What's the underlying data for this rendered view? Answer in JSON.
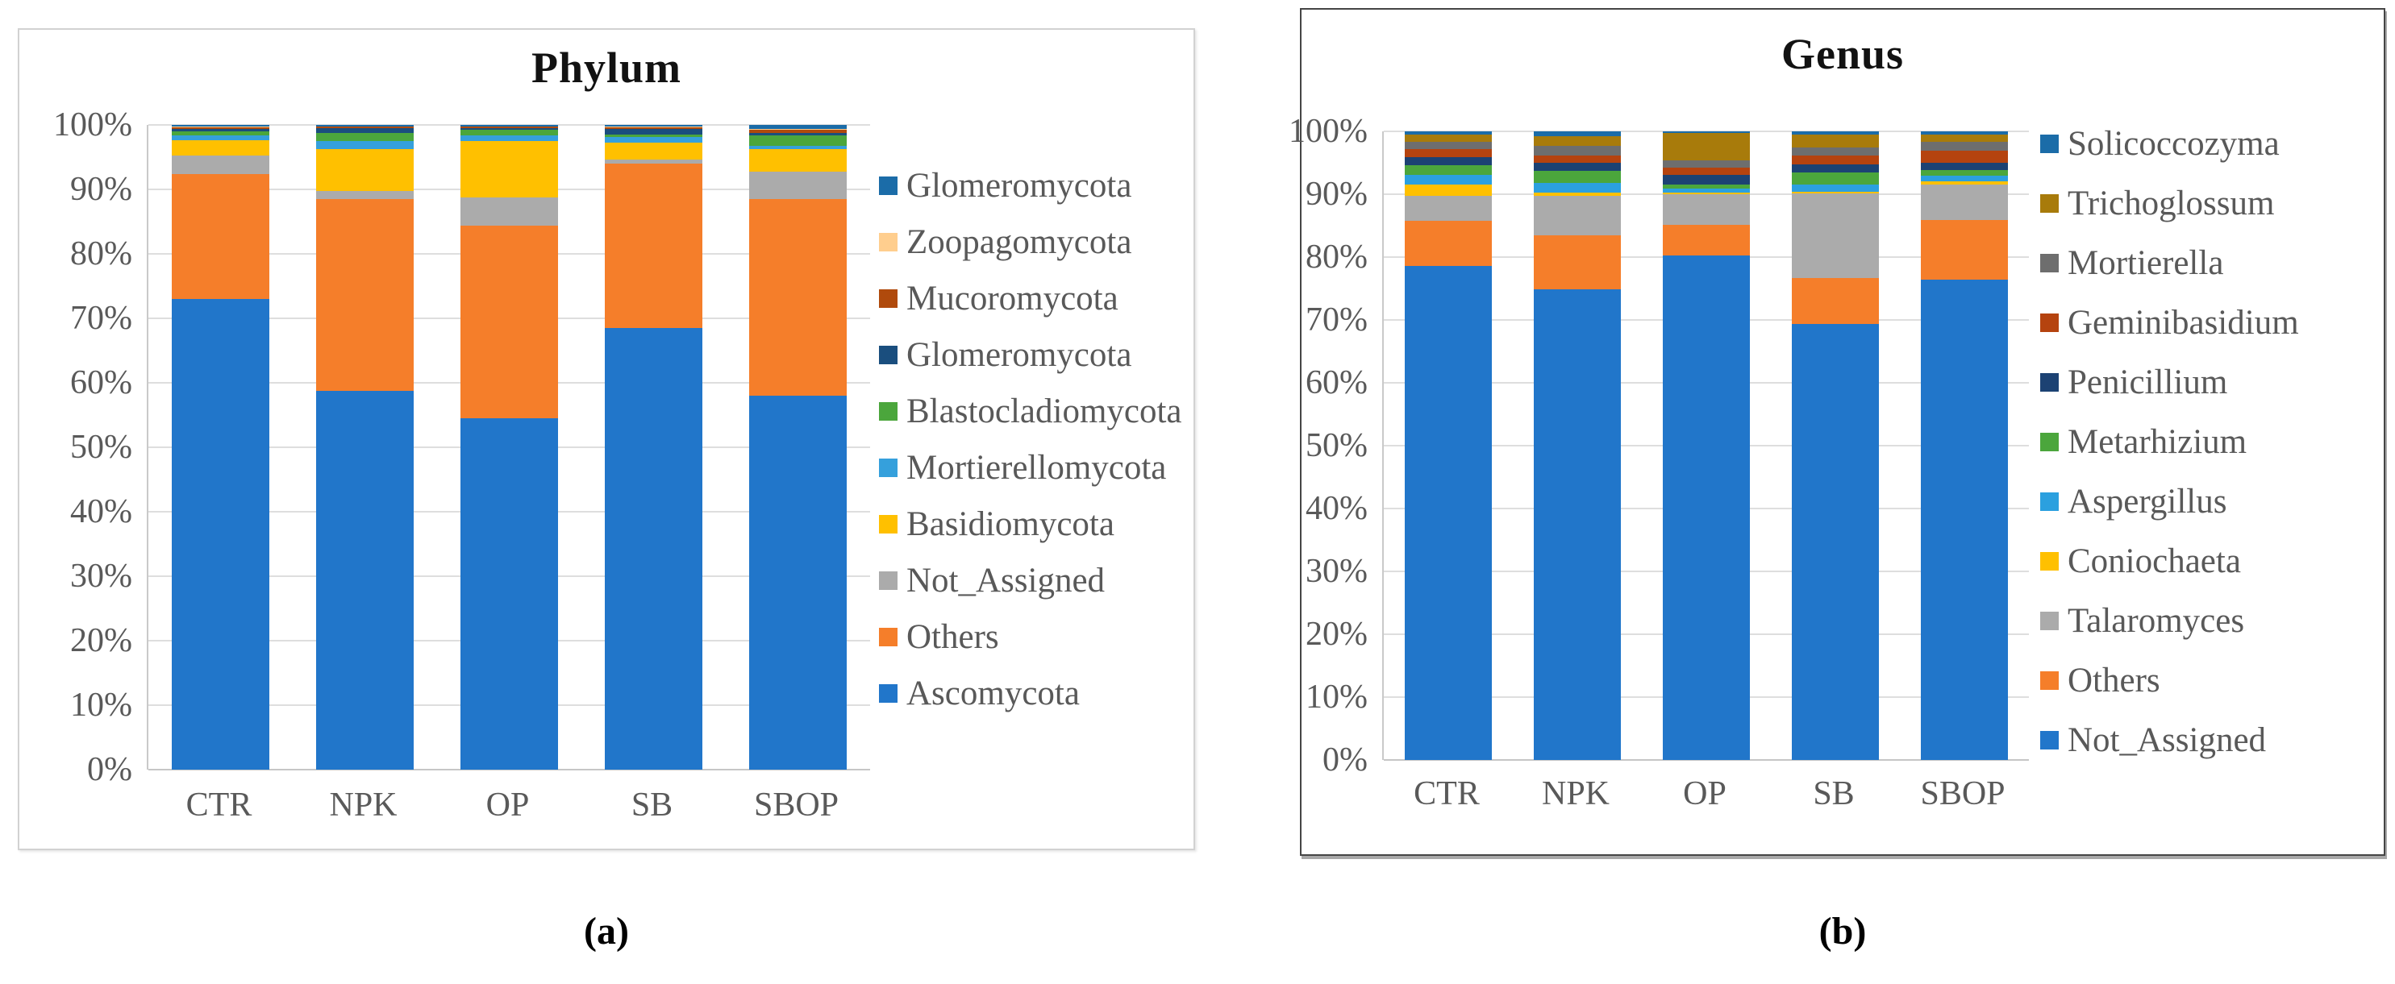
{
  "figure": {
    "captions": {
      "a": "(a)",
      "b": "(b)"
    }
  },
  "axis": {
    "text_color": "#595959",
    "gridline_color": "#dedede"
  },
  "chart_data": [
    {
      "type": "bar",
      "stacked": true,
      "units": "percent",
      "title": "Phylum",
      "categories": [
        "CTR",
        "NPK",
        "OP",
        "SB",
        "SBOP"
      ],
      "ylim": [
        0,
        100
      ],
      "yticks": [
        "100%",
        "90%",
        "80%",
        "70%",
        "60%",
        "50%",
        "40%",
        "30%",
        "20%",
        "10%",
        "0%"
      ],
      "grid": true,
      "legend_position": "right",
      "legend_order": "top-of-stack-first",
      "series": [
        {
          "name": "Ascomycota",
          "color": "#2176ca",
          "values": [
            73.0,
            58.8,
            54.5,
            68.5,
            58.0
          ]
        },
        {
          "name": "Others",
          "color": "#f57e2a",
          "values": [
            19.4,
            29.7,
            29.9,
            25.5,
            30.5
          ]
        },
        {
          "name": "Not_Assigned",
          "color": "#ababab",
          "values": [
            2.8,
            1.3,
            4.3,
            0.6,
            4.3
          ]
        },
        {
          "name": "Basidiomycota",
          "color": "#ffc000",
          "values": [
            2.4,
            6.5,
            8.8,
            2.7,
            3.4
          ]
        },
        {
          "name": "Mortierellomycota",
          "color": "#35a0dc",
          "values": [
            0.8,
            1.2,
            0.9,
            0.8,
            0.6
          ]
        },
        {
          "name": "Blastocladiomycota",
          "color": "#4ba63c",
          "values": [
            0.6,
            1.3,
            0.8,
            0.4,
            1.6
          ]
        },
        {
          "name": "Glomeromycota",
          "color": "#1a4e7e",
          "values": [
            0.4,
            0.7,
            0.3,
            0.9,
            0.4
          ]
        },
        {
          "name": "Mucoromycota",
          "color": "#b04a0c",
          "values": [
            0.2,
            0.2,
            0.2,
            0.2,
            0.4
          ]
        },
        {
          "name": "Zoopagomycota",
          "color": "#ffce8e",
          "values": [
            0.1,
            0.1,
            0.1,
            0.1,
            0.2
          ]
        },
        {
          "name": "Glomeromycota",
          "color": "#1b6ca8",
          "values": [
            0.3,
            0.2,
            0.2,
            0.3,
            0.6
          ]
        }
      ]
    },
    {
      "type": "bar",
      "stacked": true,
      "units": "percent",
      "title": "Genus",
      "categories": [
        "CTR",
        "NPK",
        "OP",
        "SB",
        "SBOP"
      ],
      "ylim": [
        0,
        100
      ],
      "yticks": [
        "100%",
        "90%",
        "80%",
        "70%",
        "60%",
        "50%",
        "40%",
        "30%",
        "20%",
        "10%",
        "0%"
      ],
      "grid": true,
      "legend_position": "right",
      "legend_order": "top-of-stack-first",
      "series": [
        {
          "name": "Not_Assigned",
          "color": "#2176ca",
          "values": [
            78.6,
            74.9,
            80.3,
            69.3,
            76.4
          ]
        },
        {
          "name": "Others",
          "color": "#f57e2a",
          "values": [
            7.2,
            8.6,
            4.8,
            7.4,
            9.5
          ]
        },
        {
          "name": "Talaromyces",
          "color": "#ababab",
          "values": [
            4.0,
            6.2,
            4.9,
            13.4,
            5.7
          ]
        },
        {
          "name": "Coniochaeta",
          "color": "#ffc000",
          "values": [
            1.8,
            0.5,
            0.3,
            0.3,
            0.5
          ]
        },
        {
          "name": "Aspergillus",
          "color": "#2ba0df",
          "values": [
            1.5,
            1.6,
            0.6,
            1.2,
            0.8
          ]
        },
        {
          "name": "Metarhizium",
          "color": "#4ba63c",
          "values": [
            1.5,
            1.9,
            0.6,
            1.9,
            1.0
          ]
        },
        {
          "name": "Penicillium",
          "color": "#1c4273",
          "values": [
            1.3,
            1.3,
            1.6,
            1.2,
            1.1
          ]
        },
        {
          "name": "Geminibasidium",
          "color": "#b5430f",
          "values": [
            1.3,
            1.2,
            1.1,
            1.4,
            1.9
          ]
        },
        {
          "name": "Mortierella",
          "color": "#6e6e6e",
          "values": [
            1.2,
            1.5,
            1.2,
            1.3,
            1.5
          ]
        },
        {
          "name": "Trichoglossum",
          "color": "#a87b0b",
          "values": [
            1.1,
            1.5,
            4.4,
            2.1,
            1.1
          ]
        },
        {
          "name": "Solicoccozyma",
          "color": "#1b6ca8",
          "values": [
            0.5,
            0.8,
            0.2,
            0.5,
            0.5
          ]
        }
      ]
    }
  ]
}
